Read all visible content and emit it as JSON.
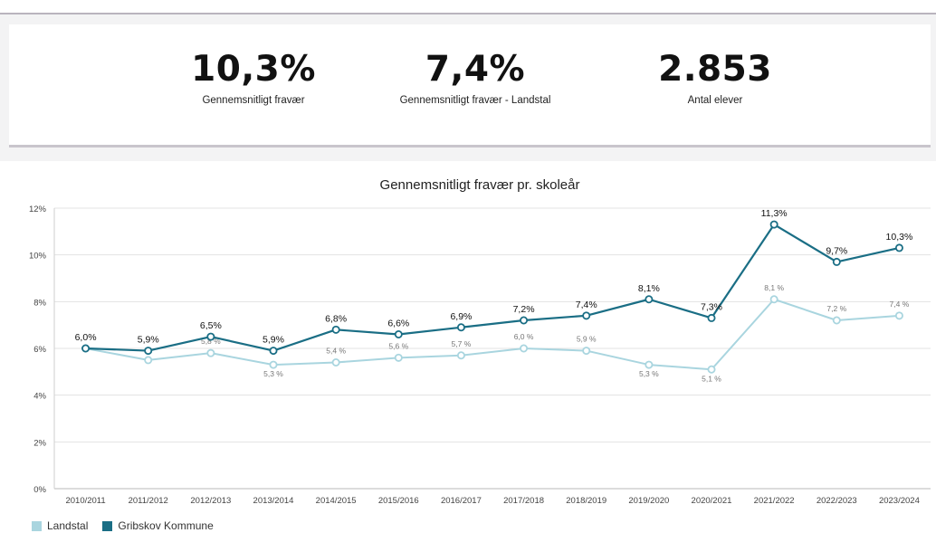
{
  "kpis": [
    {
      "value": "10,3%",
      "label": "Gennemsnitligt fravær"
    },
    {
      "value": "7,4%",
      "label": "Gennemsnitligt fravær - Landstal"
    },
    {
      "value": "2.853",
      "label": "Antal elever"
    }
  ],
  "colors": {
    "landstal": "#a9d5df",
    "gribskov": "#1a6e85",
    "grid": "#e3e3e3"
  },
  "chart_data": {
    "type": "line",
    "title": "Gennemsnitligt fravær pr. skoleår",
    "xlabel": "",
    "ylabel": "",
    "ylim": [
      0,
      12
    ],
    "yticks": [
      "0%",
      "2%",
      "4%",
      "6%",
      "8%",
      "10%",
      "12%"
    ],
    "grid": "horizontal",
    "legend": "bottom-left",
    "categories": [
      "2010/2011",
      "2011/2012",
      "2012/2013",
      "2013/2014",
      "2014/2015",
      "2015/2016",
      "2016/2017",
      "2017/2018",
      "2018/2019",
      "2019/2020",
      "2020/2021",
      "2021/2022",
      "2022/2023",
      "2023/2024"
    ],
    "series": [
      {
        "name": "Landstal",
        "values": [
          6.0,
          5.5,
          5.8,
          5.3,
          5.4,
          5.6,
          5.7,
          6.0,
          5.9,
          5.3,
          5.1,
          8.1,
          7.2,
          7.4
        ],
        "labels": [
          "",
          "",
          "5,8 %",
          "5,3 %",
          "5,4 %",
          "5,6 %",
          "5,7 %",
          "6,0 %",
          "5,9 %",
          "5,3 %",
          "5,1 %",
          "8,1 %",
          "7,2 %",
          "7,4 %"
        ]
      },
      {
        "name": "Gribskov Kommune",
        "values": [
          6.0,
          5.9,
          6.5,
          5.9,
          6.8,
          6.6,
          6.9,
          7.2,
          7.4,
          8.1,
          7.3,
          11.3,
          9.7,
          10.3
        ],
        "labels": [
          "6,0%",
          "5,9%",
          "6,5%",
          "5,9%",
          "6,8%",
          "6,6%",
          "6,9%",
          "7,2%",
          "7,4%",
          "8,1%",
          "7,3%",
          "11,3%",
          "9,7%",
          "10,3%"
        ]
      }
    ]
  }
}
